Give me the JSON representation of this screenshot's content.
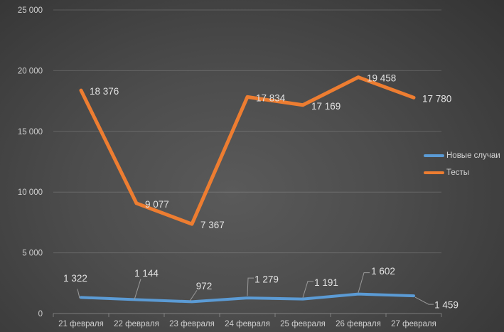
{
  "chart_data": {
    "type": "line",
    "title": "",
    "categories": [
      "21 февраля",
      "22 февраля",
      "23 февраля",
      "24 февраля",
      "25 февраля",
      "26 февраля",
      "27 февраля"
    ],
    "series": [
      {
        "name": "Новые случаи",
        "color": "#5B9BD5",
        "values": [
          1322,
          1144,
          972,
          1279,
          1191,
          1602,
          1459
        ],
        "data_labels": [
          "1 322",
          "1 144",
          "972",
          "1 279",
          "1 191",
          "1 602",
          "1 459"
        ]
      },
      {
        "name": "Тесты",
        "color": "#ED7D31",
        "values": [
          18376,
          9077,
          7367,
          17834,
          17169,
          19458,
          17780
        ],
        "data_labels": [
          "18 376",
          "9 077",
          "7 367",
          "17 834",
          "17 169",
          "19 458",
          "17 780"
        ]
      }
    ],
    "y_axis": {
      "min": 0,
      "max": 25000,
      "step": 5000,
      "tick_labels": [
        "0",
        "5 000",
        "10 000",
        "15 000",
        "20 000",
        "25 000"
      ]
    },
    "x_axis": {
      "tick_labels": [
        "21 февраля",
        "22 февраля",
        "23 февраля",
        "24 февраля",
        "25 февраля",
        "26 февраля",
        "27 февраля"
      ]
    },
    "legend": {
      "position": "right",
      "items": [
        {
          "label": "Новые случаи",
          "color": "#5B9BD5"
        },
        {
          "label": "Тесты",
          "color": "#ED7D31"
        }
      ]
    },
    "grid": true
  },
  "colors": {
    "background_center": "#5a5a5a",
    "background_edge": "#242424",
    "gridline": "rgba(255,255,255,0.16)",
    "axis_line": "rgba(255,255,255,0.30)",
    "axis_text": "#cfcfcf",
    "data_label_text": "#e2e2e2",
    "leader_line": "#9a9a9a"
  }
}
